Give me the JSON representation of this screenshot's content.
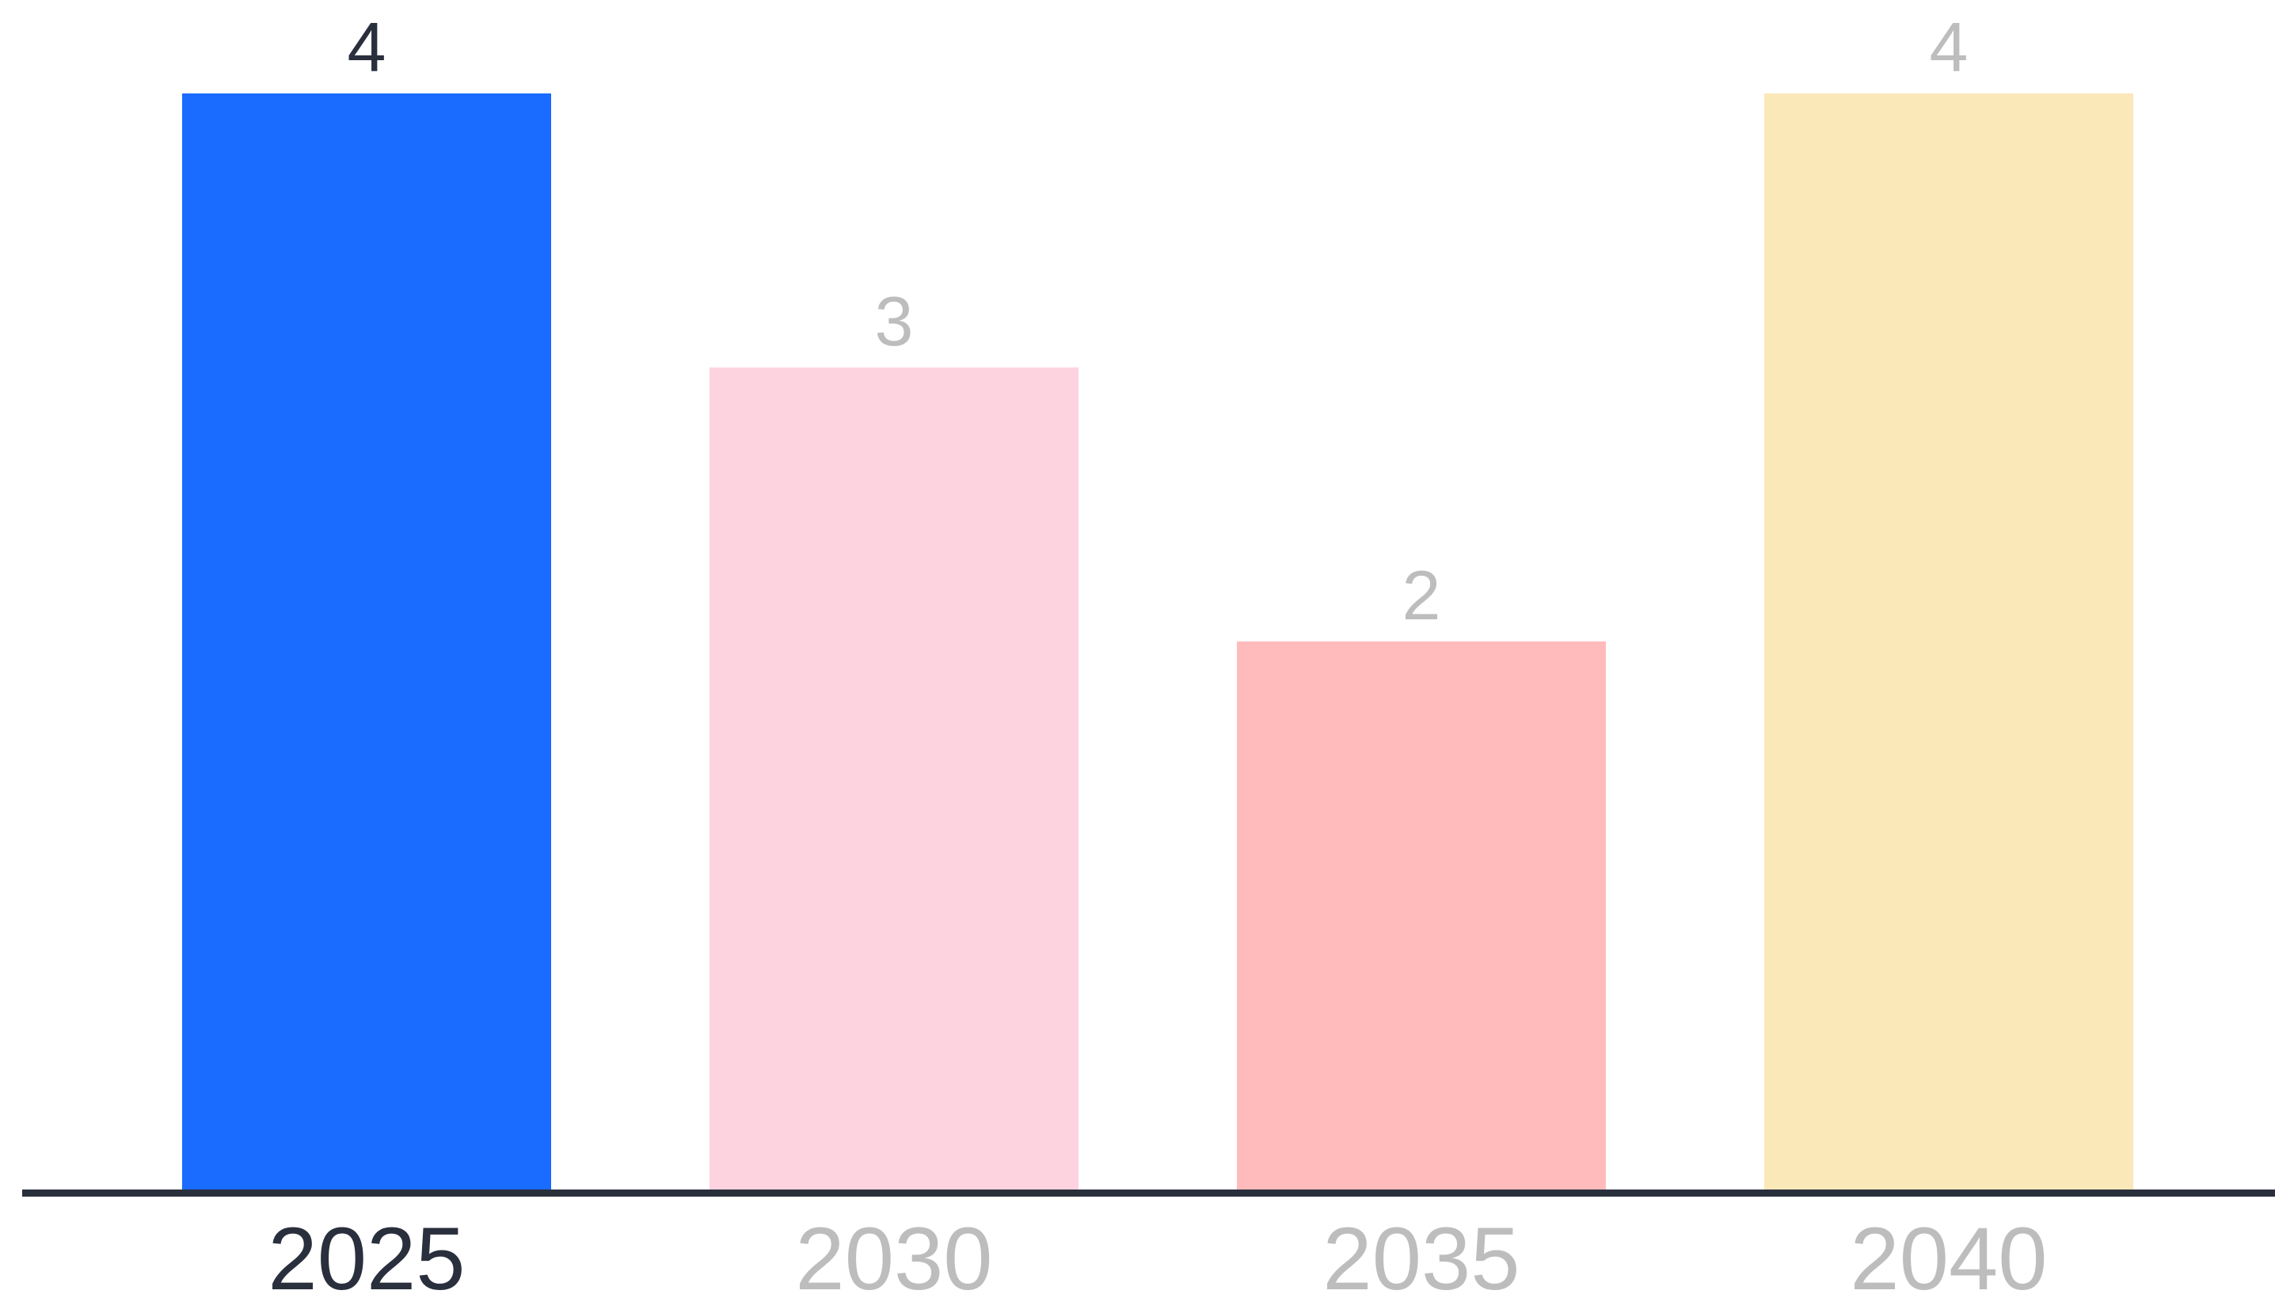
{
  "chart_data": {
    "type": "bar",
    "title": "",
    "xlabel": "",
    "ylabel": "",
    "categories": [
      "2025",
      "2030",
      "2035",
      "2040"
    ],
    "values": [
      4,
      3,
      2,
      4
    ],
    "value_labels": [
      "4",
      "3",
      "2",
      "4"
    ],
    "ylim": [
      0,
      4
    ],
    "grid": false,
    "legend": "none",
    "highlighted_index": 0,
    "colors": {
      "bars": [
        "#1a6bff",
        "#fdd3e0",
        "#ffbbbb",
        "#fbe8b8"
      ],
      "axis": "#2a2f3d",
      "label_active": "#2a2f3d",
      "label_inactive": "#bdbdbd"
    }
  }
}
